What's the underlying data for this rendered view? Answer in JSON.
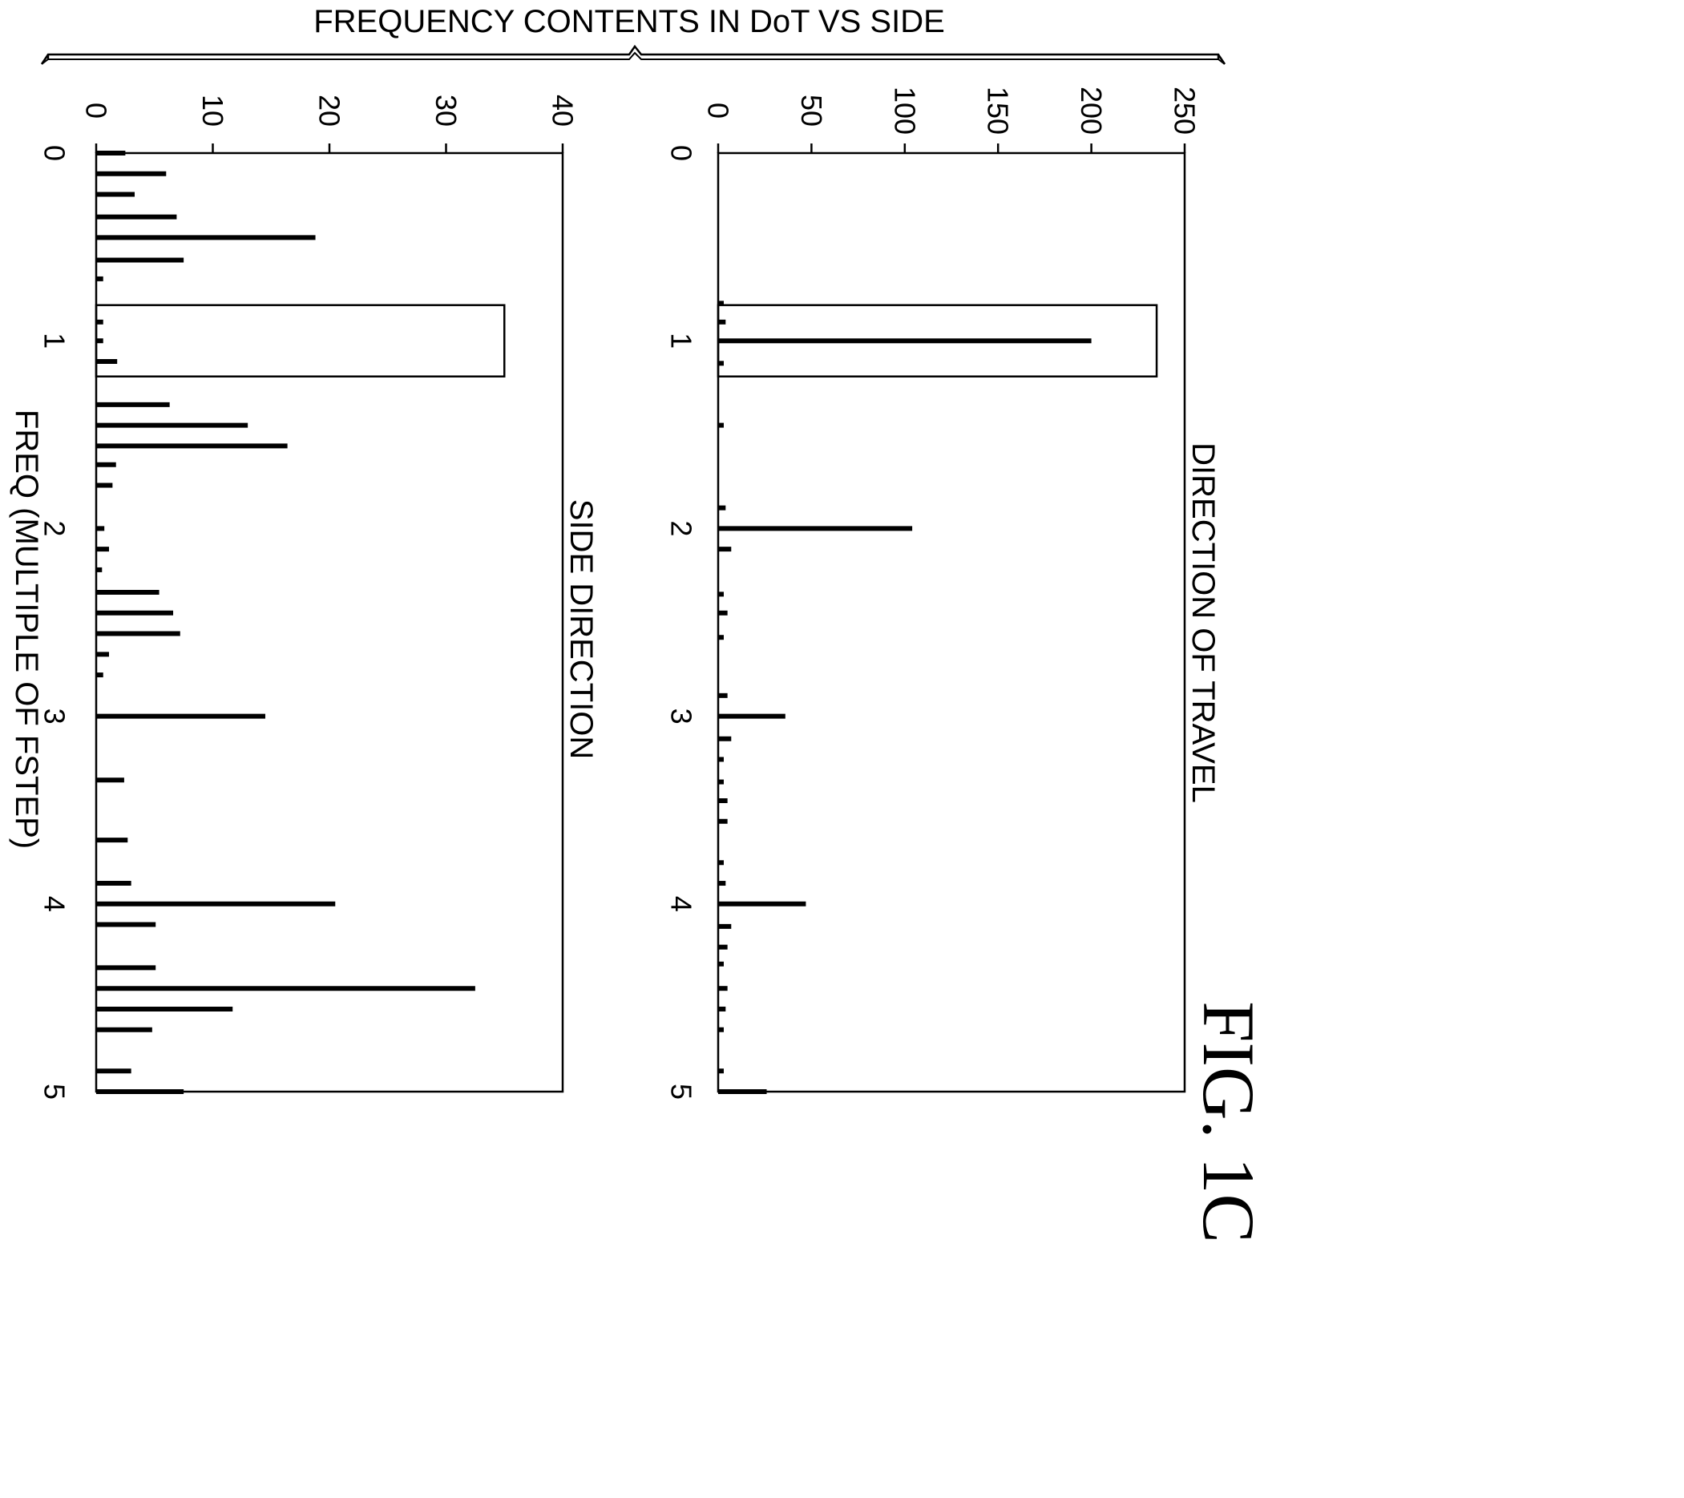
{
  "figure": {
    "title": "FREQUENCY CONTENTS IN DoT VS SIDE",
    "label": "FIG. 1C",
    "colors": {
      "ink": "#000000",
      "background": "#ffffff"
    }
  },
  "chart_data": [
    {
      "type": "bar",
      "orientation": "figure rotated 90 degrees clockwise",
      "title": "DIRECTION OF TRAVEL",
      "xlabel": "",
      "ylabel": "",
      "xlim": [
        0,
        5
      ],
      "ylim": [
        0,
        250
      ],
      "x_ticks": [
        "0",
        "1",
        "2",
        "3",
        "4",
        "5"
      ],
      "y_ticks": [
        "0",
        "50",
        "100",
        "150",
        "200",
        "250"
      ],
      "grid": false,
      "highlight_box": {
        "x_range": [
          0.81,
          1.19
        ],
        "y_value": 235
      },
      "points": [
        {
          "x": 0.8,
          "y": 3
        },
        {
          "x": 0.9,
          "y": 4
        },
        {
          "x": 1.0,
          "y": 200
        },
        {
          "x": 1.12,
          "y": 3
        },
        {
          "x": 1.45,
          "y": 3
        },
        {
          "x": 1.89,
          "y": 4
        },
        {
          "x": 2.0,
          "y": 104
        },
        {
          "x": 2.11,
          "y": 7
        },
        {
          "x": 2.35,
          "y": 3
        },
        {
          "x": 2.45,
          "y": 5
        },
        {
          "x": 2.58,
          "y": 3
        },
        {
          "x": 2.89,
          "y": 5
        },
        {
          "x": 3.0,
          "y": 36
        },
        {
          "x": 3.12,
          "y": 7
        },
        {
          "x": 3.23,
          "y": 3
        },
        {
          "x": 3.35,
          "y": 3
        },
        {
          "x": 3.45,
          "y": 5
        },
        {
          "x": 3.56,
          "y": 5
        },
        {
          "x": 3.78,
          "y": 3
        },
        {
          "x": 3.89,
          "y": 4
        },
        {
          "x": 4.0,
          "y": 47
        },
        {
          "x": 4.12,
          "y": 7
        },
        {
          "x": 4.23,
          "y": 5
        },
        {
          "x": 4.32,
          "y": 3
        },
        {
          "x": 4.45,
          "y": 5
        },
        {
          "x": 4.56,
          "y": 4
        },
        {
          "x": 4.67,
          "y": 3
        },
        {
          "x": 4.89,
          "y": 3
        },
        {
          "x": 5.0,
          "y": 26
        }
      ]
    },
    {
      "type": "bar",
      "orientation": "figure rotated 90 degrees clockwise",
      "title": "SIDE DIRECTION",
      "xlabel": "FREQ (MULTIPLE OF FSTEP)",
      "ylabel": "",
      "xlim": [
        0,
        5
      ],
      "ylim": [
        0,
        40
      ],
      "x_ticks": [
        "0",
        "1",
        "2",
        "3",
        "4",
        "5"
      ],
      "y_ticks": [
        "0",
        "10",
        "20",
        "30",
        "40"
      ],
      "grid": false,
      "highlight_box": {
        "x_range": [
          0.81,
          1.19
        ],
        "y_value": 35
      },
      "points": [
        {
          "x": 0.0,
          "y": 2.5
        },
        {
          "x": 0.11,
          "y": 6
        },
        {
          "x": 0.22,
          "y": 3.3
        },
        {
          "x": 0.34,
          "y": 6.9
        },
        {
          "x": 0.45,
          "y": 18.8
        },
        {
          "x": 0.57,
          "y": 7.5
        },
        {
          "x": 0.67,
          "y": 0.6
        },
        {
          "x": 0.9,
          "y": 0.6
        },
        {
          "x": 1.0,
          "y": 0.6
        },
        {
          "x": 1.11,
          "y": 1.8
        },
        {
          "x": 1.34,
          "y": 6.3
        },
        {
          "x": 1.45,
          "y": 13
        },
        {
          "x": 1.56,
          "y": 16.4
        },
        {
          "x": 1.66,
          "y": 1.7
        },
        {
          "x": 1.77,
          "y": 1.4
        },
        {
          "x": 2.0,
          "y": 0.7
        },
        {
          "x": 2.11,
          "y": 1.1
        },
        {
          "x": 2.22,
          "y": 0.5
        },
        {
          "x": 2.34,
          "y": 5.4
        },
        {
          "x": 2.45,
          "y": 6.6
        },
        {
          "x": 2.56,
          "y": 7.2
        },
        {
          "x": 2.67,
          "y": 1.1
        },
        {
          "x": 2.78,
          "y": 0.6
        },
        {
          "x": 3.0,
          "y": 14.5
        },
        {
          "x": 3.34,
          "y": 2.4
        },
        {
          "x": 3.66,
          "y": 2.7
        },
        {
          "x": 3.89,
          "y": 3
        },
        {
          "x": 4.0,
          "y": 20.5
        },
        {
          "x": 4.11,
          "y": 5.1
        },
        {
          "x": 4.34,
          "y": 5.1
        },
        {
          "x": 4.45,
          "y": 32.5
        },
        {
          "x": 4.56,
          "y": 11.7
        },
        {
          "x": 4.67,
          "y": 4.8
        },
        {
          "x": 4.89,
          "y": 3
        },
        {
          "x": 5.0,
          "y": 7.5
        }
      ]
    }
  ]
}
